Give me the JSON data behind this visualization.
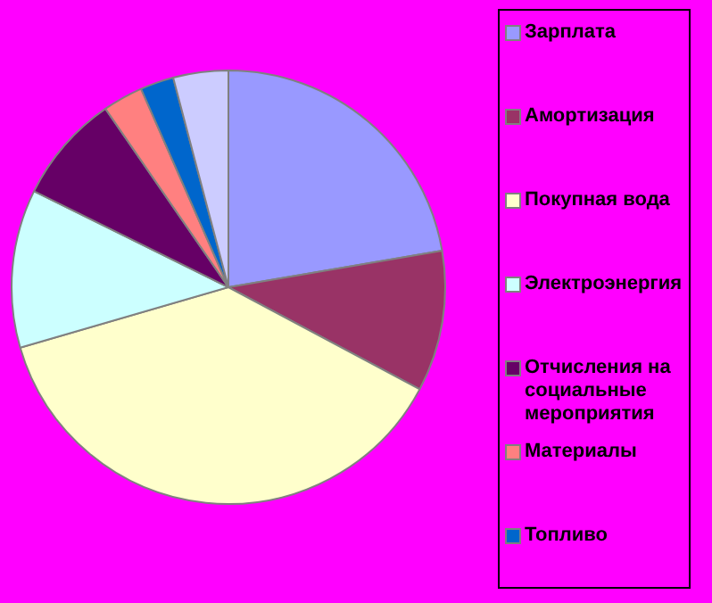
{
  "chart_data": {
    "type": "pie",
    "categories": [
      "Зарплата",
      "Амортизация",
      "Покупная вода",
      "Электроэнергия",
      "Отчисления на социальные мероприятия",
      "Материалы",
      "Топливо",
      null
    ],
    "values": [
      22.3,
      10.5,
      37.7,
      11.8,
      8.1,
      3.0,
      2.5,
      4.1
    ],
    "colors": [
      "#9999ff",
      "#993366",
      "#ffffcc",
      "#ccffff",
      "#660066",
      "#ff8080",
      "#0066cc",
      "#ccccff"
    ],
    "legend": "right"
  }
}
